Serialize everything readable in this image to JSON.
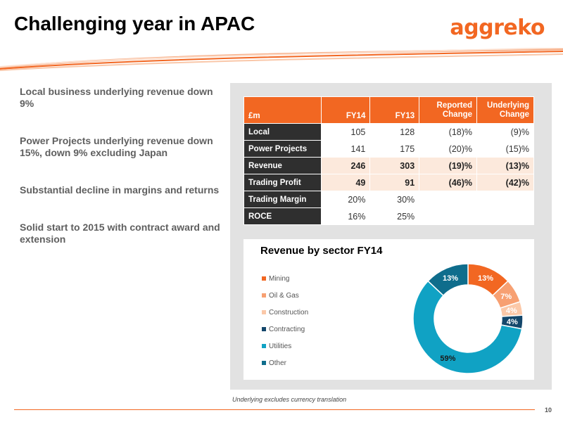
{
  "header": {
    "title": "Challenging year in APAC",
    "logo_text": "aggreko"
  },
  "colors": {
    "accent": "#f26722",
    "dark": "#2f2f2f",
    "highlight_row": "#fce9dc",
    "panel": "#e2e2e2"
  },
  "bullets": [
    "Local business underlying revenue down 9%",
    "Power Projects underlying revenue down 15%, down 9% excluding Japan",
    "Substantial decline in margins and returns",
    "Solid start to 2015 with contract award and extension"
  ],
  "table": {
    "headers": [
      "£m",
      "FY14",
      "FY13",
      "Reported Change",
      "Underlying Change"
    ],
    "rows": [
      {
        "label": "Local",
        "values": [
          "105",
          "128",
          "(18)%",
          "(9)%"
        ],
        "highlight": false
      },
      {
        "label": "Power Projects",
        "values": [
          "141",
          "175",
          "(20)%",
          "(15)%"
        ],
        "highlight": false
      },
      {
        "label": "Revenue",
        "values": [
          "246",
          "303",
          "(19)%",
          "(13)%"
        ],
        "highlight": true
      },
      {
        "label": "Trading Profit",
        "values": [
          "49",
          "91",
          "(46)%",
          "(42)%"
        ],
        "highlight": true
      },
      {
        "label": "Trading Margin",
        "values": [
          "20%",
          "30%",
          "",
          ""
        ],
        "highlight": false
      },
      {
        "label": "ROCE",
        "values": [
          "16%",
          "25%",
          "",
          ""
        ],
        "highlight": false
      }
    ]
  },
  "chart_data": {
    "type": "pie",
    "title": "Revenue by sector FY14",
    "categories": [
      "Mining",
      "Oil & Gas",
      "Construction",
      "Contracting",
      "Utilities",
      "Other"
    ],
    "values": [
      13,
      7,
      4,
      4,
      59,
      13
    ],
    "labels": [
      "13%",
      "7%",
      "4%",
      "4%",
      "59%",
      "13%"
    ],
    "colors": [
      "#f26722",
      "#f7a072",
      "#fbc8a8",
      "#14476b",
      "#10a2c4",
      "#0f6d8c"
    ],
    "legend_position": "left"
  },
  "footer": {
    "footnote": "Underlying excludes currency translation",
    "page_number": "10"
  }
}
